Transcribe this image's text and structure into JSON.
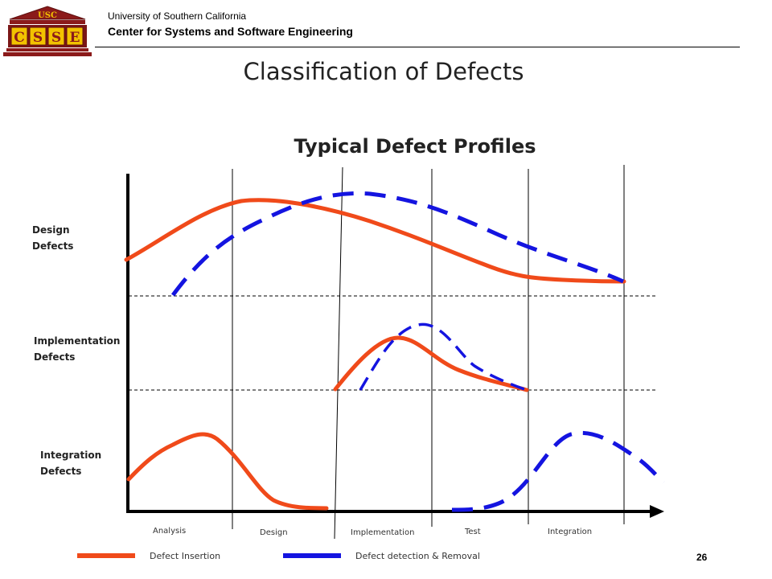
{
  "header": {
    "university": "University of Southern California",
    "center": "Center for Systems and Software Engineering",
    "logo_top_text": "USC",
    "logo_letters": [
      "C",
      "S",
      "S",
      "E"
    ]
  },
  "slide": {
    "title": "Classification of Defects",
    "page_number": "26"
  },
  "diagram": {
    "title": "Typical Defect Profiles",
    "rows": [
      {
        "line1": "Design",
        "line2": "Defects"
      },
      {
        "line1": "Implementation",
        "line2": "Defects"
      },
      {
        "line1": "Integration",
        "line2": "Defects"
      }
    ],
    "phases": [
      "Analysis",
      "Design",
      "Implementation",
      "Test",
      "Integration"
    ],
    "legend": [
      {
        "label": "Defect Insertion",
        "color": "#f04a1a",
        "style": "solid"
      },
      {
        "label": "Defect detection & Removal",
        "color": "#1414e0",
        "style": "dashed"
      }
    ]
  },
  "colors": {
    "insertion": "#f04a1a",
    "detection": "#1414e0"
  }
}
